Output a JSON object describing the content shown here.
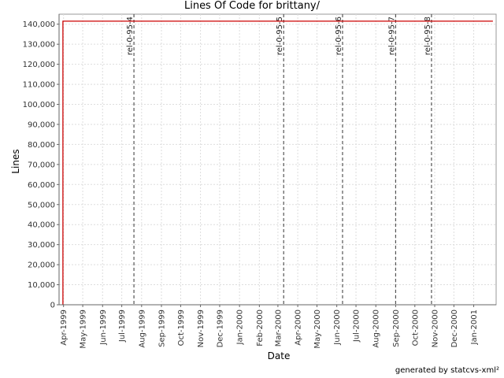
{
  "chart_data": {
    "type": "line",
    "title": "Lines Of Code for brittany/",
    "xlabel": "Date",
    "ylabel": "Lines",
    "x_type": "date",
    "xlim": [
      "1999-03-25",
      "2001-02-05"
    ],
    "ylim": [
      0,
      145000
    ],
    "y_ticks": [
      0,
      10000,
      20000,
      30000,
      40000,
      50000,
      60000,
      70000,
      80000,
      90000,
      100000,
      110000,
      120000,
      130000,
      140000
    ],
    "y_tick_labels": [
      "0",
      "10,000",
      "20,000",
      "30,000",
      "40,000",
      "50,000",
      "60,000",
      "70,000",
      "80,000",
      "90,000",
      "100,000",
      "110,000",
      "120,000",
      "130,000",
      "140,000"
    ],
    "x_ticks": [
      "1999-04-01",
      "1999-05-01",
      "1999-06-01",
      "1999-07-01",
      "1999-08-01",
      "1999-09-01",
      "1999-10-01",
      "1999-11-01",
      "1999-12-01",
      "2000-01-01",
      "2000-02-01",
      "2000-03-01",
      "2000-04-01",
      "2000-05-01",
      "2000-06-01",
      "2000-07-01",
      "2000-08-01",
      "2000-09-01",
      "2000-10-01",
      "2000-11-01",
      "2000-12-01",
      "2001-01-01"
    ],
    "x_tick_labels": [
      "Apr-1999",
      "May-1999",
      "Jun-1999",
      "Jul-1999",
      "Aug-1999",
      "Sep-1999",
      "Oct-1999",
      "Nov-1999",
      "Dec-1999",
      "Jan-2000",
      "Feb-2000",
      "Mar-2000",
      "Apr-2000",
      "May-2000",
      "Jun-2000",
      "Jul-2000",
      "Aug-2000",
      "Sep-2000",
      "Oct-2000",
      "Nov-2000",
      "Dec-2000",
      "Jan-2001"
    ],
    "grid": true,
    "series": [
      {
        "color": "#cc0000",
        "points": [
          {
            "x": "1999-03-31",
            "y": 0
          },
          {
            "x": "1999-03-31",
            "y": 141500
          },
          {
            "x": "2001-01-31",
            "y": 141500
          }
        ]
      }
    ],
    "annotations": [
      {
        "label": "rel-0-95-4",
        "x": "1999-07-20"
      },
      {
        "label": "rel-0-95-5",
        "x": "2000-03-10"
      },
      {
        "label": "rel-0-95-6",
        "x": "2000-06-10"
      },
      {
        "label": "rel-0-95-7",
        "x": "2000-09-01"
      },
      {
        "label": "rel-0-95-8",
        "x": "2000-10-27"
      }
    ],
    "annotation_color": "#555555"
  },
  "footer": "generated by statcvs-xml²"
}
